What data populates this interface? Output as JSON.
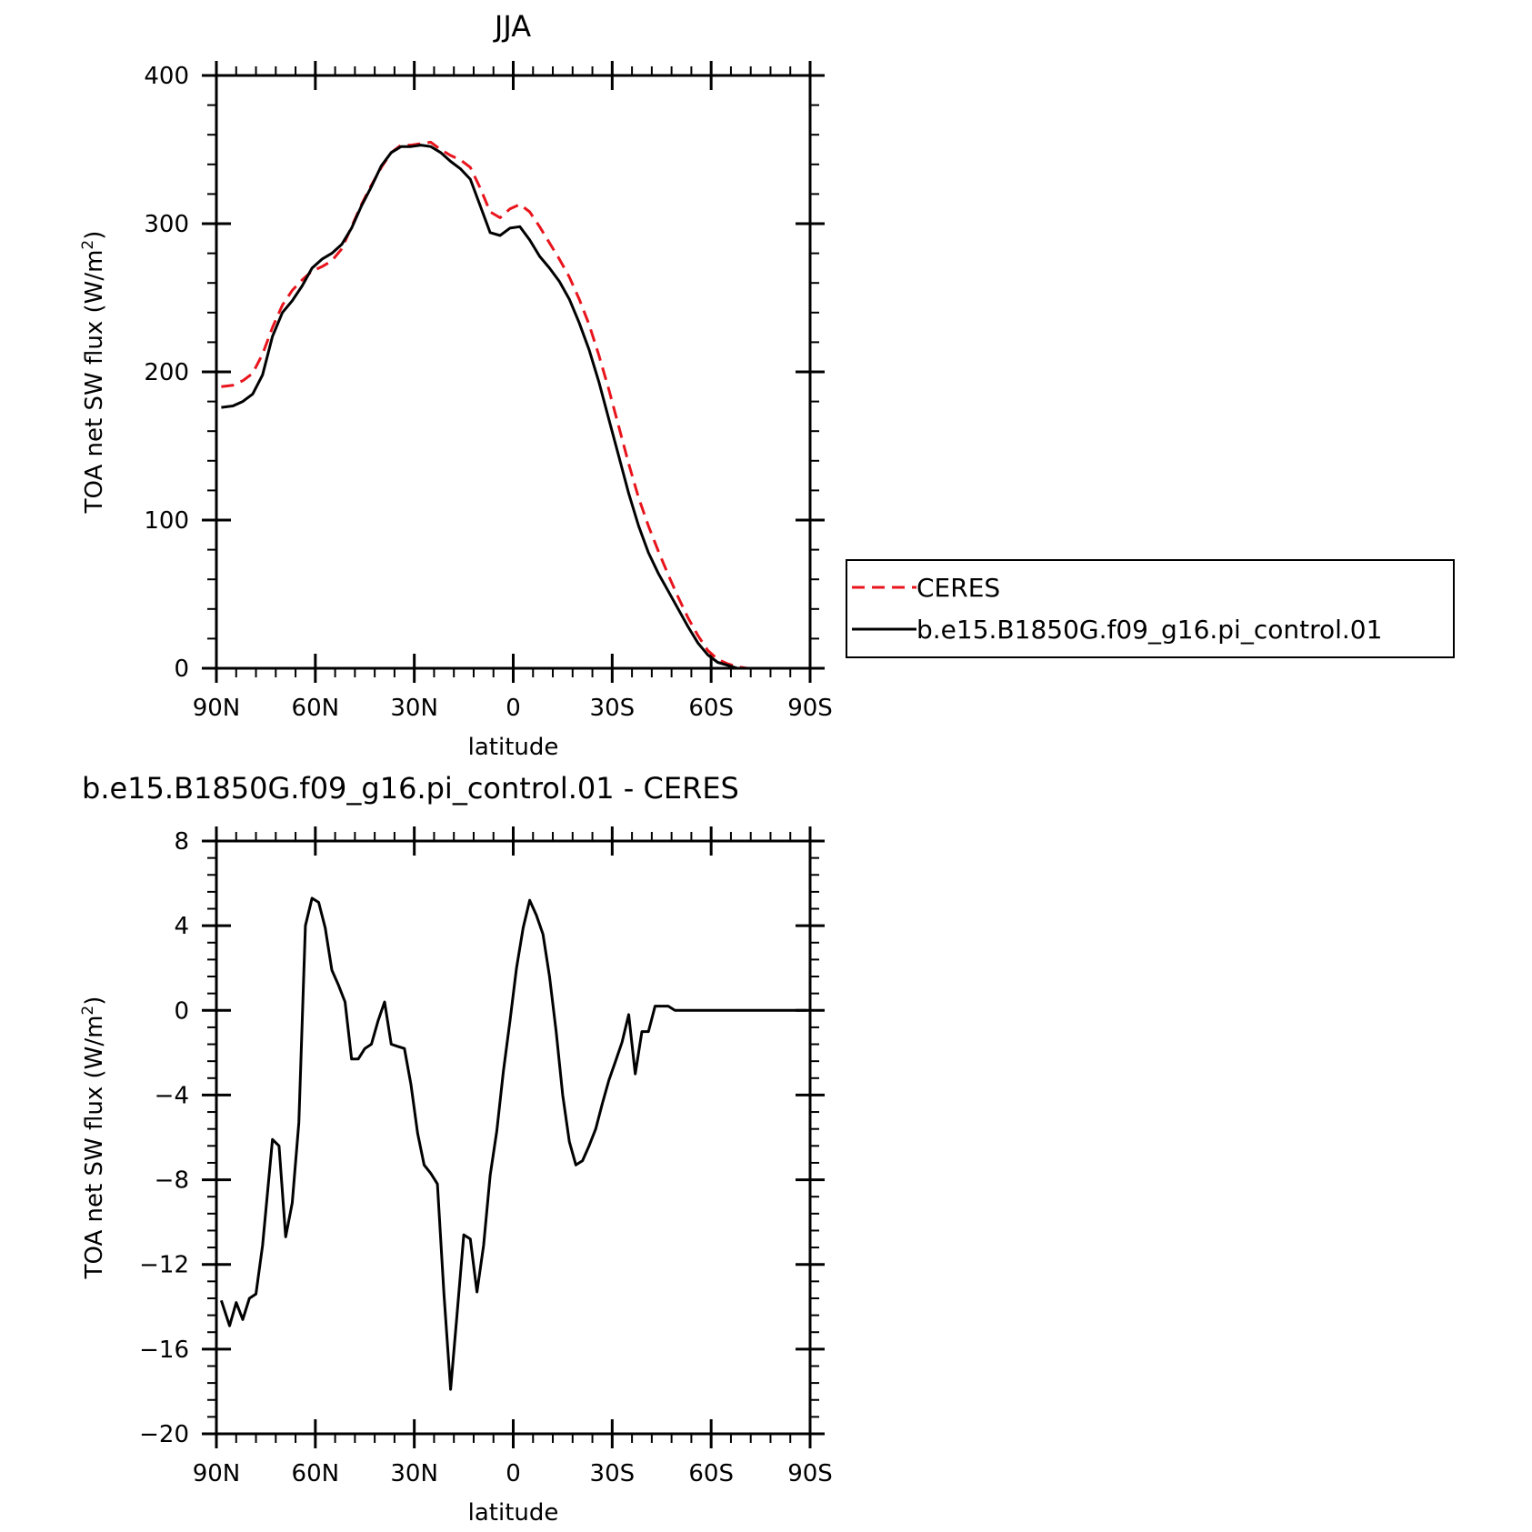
{
  "chart_data": [
    {
      "type": "line",
      "title": "JJA",
      "xlabel": "latitude",
      "ylabel": "TOA net SW flux (W/m²)",
      "ylabel_base": "TOA net SW flux (W/m",
      "ylabel_sup": "2",
      "ylabel_tail": ")",
      "xlim": [
        90,
        -90
      ],
      "ylim": [
        0,
        400
      ],
      "xticks": [
        90,
        60,
        30,
        0,
        -30,
        -60,
        -90
      ],
      "xtick_labels": [
        "90N",
        "60N",
        "30N",
        "0",
        "30S",
        "60S",
        "90S"
      ],
      "yticks": [
        0,
        100,
        200,
        300,
        400
      ],
      "ytick_labels": [
        "0",
        "100",
        "200",
        "300",
        "400"
      ],
      "legend_position": "right",
      "series": [
        {
          "name": "CERES",
          "color": "#e8141c",
          "dash": "dashed",
          "x": [
            88.5,
            85,
            82,
            79,
            76,
            73,
            70,
            67,
            64,
            61,
            58,
            55,
            52,
            49,
            46,
            43,
            40,
            37,
            34,
            31,
            28,
            25,
            22,
            19,
            16,
            13,
            10,
            7,
            4,
            1,
            -2,
            -5,
            -8,
            -11,
            -14,
            -17,
            -20,
            -23,
            -26,
            -29,
            -32,
            -35,
            -38,
            -41,
            -44,
            -47,
            -50,
            -53,
            -56,
            -59,
            -62,
            -65,
            -68,
            -71,
            -74,
            -77,
            -80,
            -83,
            -86,
            -89
          ],
          "y": [
            190,
            191,
            194,
            199,
            212,
            230,
            245,
            255,
            262,
            268,
            271,
            275,
            283,
            298,
            313,
            326,
            338,
            348,
            353,
            353,
            354,
            355,
            350,
            346,
            343,
            338,
            324,
            308,
            304,
            310,
            313,
            308,
            298,
            287,
            276,
            264,
            249,
            232,
            211,
            188,
            163,
            138,
            115,
            96,
            79,
            63,
            48,
            34,
            22,
            12,
            6,
            3,
            1,
            0,
            0,
            0,
            0,
            0,
            0,
            0
          ]
        },
        {
          "name": "b.e15.B1850G.f09_g16.pi_control.01",
          "color": "#000000",
          "dash": "solid",
          "x": [
            88.5,
            85,
            82,
            79,
            76,
            73,
            70,
            67,
            64,
            61,
            58,
            55,
            52,
            49,
            46,
            43,
            40,
            37,
            34,
            31,
            28,
            25,
            22,
            19,
            16,
            13,
            10,
            7,
            4,
            1,
            -2,
            -5,
            -8,
            -11,
            -14,
            -17,
            -20,
            -23,
            -26,
            -29,
            -32,
            -35,
            -38,
            -41,
            -44,
            -47,
            -50,
            -53,
            -56,
            -59,
            -62,
            -65,
            -68,
            -71,
            -74,
            -77,
            -80,
            -83,
            -86,
            -89
          ],
          "y": [
            176,
            177,
            180,
            185,
            198,
            224,
            240,
            248,
            258,
            270,
            276,
            280,
            286,
            297,
            312,
            325,
            339,
            348,
            352,
            352,
            353,
            352,
            348,
            342,
            337,
            330,
            312,
            294,
            292,
            297,
            298,
            289,
            278,
            270,
            261,
            249,
            233,
            215,
            193,
            168,
            143,
            118,
            96,
            78,
            64,
            52,
            40,
            28,
            17,
            9,
            4,
            2,
            0,
            0,
            0,
            0,
            0,
            0,
            0,
            0
          ]
        }
      ]
    },
    {
      "type": "line",
      "title": "b.e15.B1850G.f09_g16.pi_control.01 - CERES",
      "xlabel": "latitude",
      "ylabel": "TOA net SW flux (W/m²)",
      "ylabel_base": "TOA net SW flux (W/m",
      "ylabel_sup": "2",
      "ylabel_tail": ")",
      "xlim": [
        90,
        -90
      ],
      "ylim": [
        -20,
        8
      ],
      "xticks": [
        90,
        60,
        30,
        0,
        -30,
        -60,
        -90
      ],
      "xtick_labels": [
        "90N",
        "60N",
        "30N",
        "0",
        "30S",
        "60S",
        "90S"
      ],
      "yticks": [
        8,
        4,
        0,
        -4,
        -8,
        -12,
        -16,
        -20
      ],
      "ytick_labels": [
        "8",
        "4",
        "0",
        "−4",
        "−8",
        "−12",
        "−16",
        "−20"
      ],
      "series": [
        {
          "color": "#000000",
          "dash": "solid",
          "x": [
            88.5,
            86,
            84,
            82,
            80,
            78,
            76,
            73,
            71,
            69,
            67,
            65,
            63,
            61,
            59,
            57,
            55,
            53,
            51,
            49,
            47,
            45,
            43,
            41,
            39,
            37,
            35,
            33,
            31,
            29,
            27,
            25,
            23,
            21,
            19,
            17,
            15,
            13,
            11,
            9,
            7,
            5,
            3,
            1,
            -1,
            -3,
            -5,
            -7,
            -9,
            -11,
            -13,
            -15,
            -17,
            -19,
            -21,
            -23,
            -25,
            -27,
            -29,
            -31,
            -33,
            -35,
            -37,
            -39,
            -41,
            -43,
            -45,
            -47,
            -49,
            -51,
            -53,
            -55,
            -57,
            -59,
            -61,
            -63,
            -65,
            -67,
            -69,
            -71,
            -73,
            -75,
            -77,
            -79,
            -81,
            -83,
            -85,
            -87,
            -89
          ],
          "y": [
            -13.7,
            -14.9,
            -13.8,
            -14.6,
            -13.6,
            -13.4,
            -11.1,
            -6.1,
            -6.4,
            -10.7,
            -9.1,
            -5.3,
            4.0,
            5.3,
            5.1,
            3.9,
            1.9,
            1.2,
            0.4,
            -2.3,
            -2.3,
            -1.8,
            -1.6,
            -0.5,
            0.4,
            -1.6,
            -1.7,
            -1.8,
            -3.5,
            -5.8,
            -7.3,
            -7.7,
            -8.2,
            -13.4,
            -17.9,
            -14.3,
            -10.6,
            -10.8,
            -13.3,
            -11.1,
            -7.8,
            -5.7,
            -2.9,
            -0.5,
            2.0,
            3.9,
            5.2,
            4.5,
            3.6,
            1.6,
            -1.0,
            -4.0,
            -6.2,
            -7.3,
            -7.1,
            -6.4,
            -5.6,
            -4.4,
            -3.3,
            -2.4,
            -1.5,
            -0.2,
            -3.0,
            -1.0,
            -1.0,
            0.2,
            0.2,
            0.2,
            0.0,
            0.0,
            0.0,
            0.0,
            0.0,
            0.0,
            0.0,
            0.0,
            0.0,
            0.0,
            0.0,
            0.0,
            0.0,
            0.0,
            0.0,
            0.0,
            0.0,
            0.0,
            0.0,
            0.0,
            0.0
          ]
        }
      ]
    }
  ]
}
